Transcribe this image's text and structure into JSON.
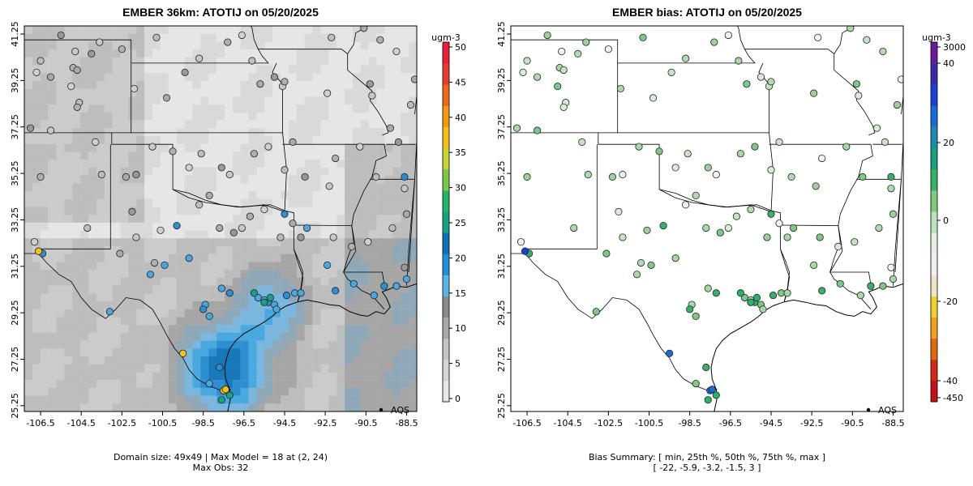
{
  "colors": {
    "conc_scale": [
      "#e8e8e8",
      "#d6d6d6",
      "#c4c4c4",
      "#a8a8a8",
      "#8a8a8a",
      "#5fb4e6",
      "#1e90d8",
      "#0e72b0",
      "#1aa085",
      "#27b36a",
      "#7cc84a",
      "#c9d43a",
      "#f2c21a",
      "#f29a14",
      "#ea6a1c",
      "#e63c2e",
      "#e8203c"
    ],
    "bias_scale": [
      "#6a1b9a",
      "#3a2aa8",
      "#1b3fd6",
      "#1b6ad6",
      "#1d8ab0",
      "#1c9c80",
      "#3bae69",
      "#7ec97e",
      "#bfe0bf",
      "#e6f0e6",
      "#f0f0f0",
      "#ece6c8",
      "#f0d030",
      "#f0a020",
      "#e06a10",
      "#d02a1a",
      "#c0101a"
    ]
  },
  "left_map": {
    "title": "EMBER 36km: ATOTIJ on 05/20/2025",
    "legend_label": "AQS",
    "colorbar_unit": "ugm-3",
    "colorbar_ticks": [
      "0",
      "5",
      "10",
      "15",
      "20",
      "25",
      "30",
      "35",
      "40",
      "45",
      "50"
    ],
    "caption_line1": "Domain size: 49x49 | Max Model = 18 at (2, 24)",
    "caption_line2": "Max Obs: 32"
  },
  "right_map": {
    "title": "EMBER bias: ATOTIJ on 05/20/2025",
    "legend_label": "AQS",
    "colorbar_unit": "ugm-3",
    "colorbar_ticks": [
      "3000",
      "40",
      "20",
      "0",
      "-20",
      "-40",
      "-450"
    ],
    "caption_line1": "Bias Summary: [ min, 25th %, 50th %, 75th %, max ]",
    "caption_line2": "[ -22,   -5.9,   -3.2,   -1.5,   3 ]"
  },
  "axes": {
    "x_ticks": [
      "-106.5",
      "-104.5",
      "-102.5",
      "-100.5",
      "-98.5",
      "-96.5",
      "-94.5",
      "-92.5",
      "-90.5",
      "-88.5"
    ],
    "y_ticks": [
      "41.25",
      "39.25",
      "37.25",
      "35.25",
      "33.25",
      "31.25",
      "29.25",
      "27.25",
      "25.25"
    ],
    "lon_range": [
      -107.3,
      -88.0
    ],
    "lat_range": [
      25.0,
      41.6
    ]
  },
  "stations": {
    "gray": [
      [
        -106.7,
        39.6
      ],
      [
        -106.5,
        40.1
      ],
      [
        -106.0,
        39.4
      ],
      [
        -105.5,
        41.2
      ],
      [
        -104.8,
        40.5
      ],
      [
        -104.9,
        39.8
      ],
      [
        -105.0,
        39.0
      ],
      [
        -104.6,
        38.3
      ],
      [
        -104.7,
        39.7
      ],
      [
        -104.0,
        40.4
      ],
      [
        -103.6,
        40.9
      ],
      [
        -102.5,
        40.6
      ],
      [
        -101.9,
        38.9
      ],
      [
        -100.8,
        41.1
      ],
      [
        -100.3,
        38.5
      ],
      [
        -99.4,
        39.6
      ],
      [
        -98.7,
        40.2
      ],
      [
        -97.3,
        40.9
      ],
      [
        -96.6,
        41.2
      ],
      [
        -96.1,
        40.1
      ],
      [
        -95.7,
        39.1
      ],
      [
        -95.0,
        39.4
      ],
      [
        -94.6,
        39.0
      ],
      [
        -94.5,
        39.2
      ],
      [
        -92.4,
        38.7
      ],
      [
        -92.2,
        41.1
      ],
      [
        -90.6,
        41.5
      ],
      [
        -90.3,
        39.1
      ],
      [
        -90.2,
        38.6
      ],
      [
        -89.8,
        41.0
      ],
      [
        -89.0,
        40.5
      ],
      [
        -88.3,
        38.2
      ],
      [
        -88.1,
        39.3
      ],
      [
        -107.0,
        37.2
      ],
      [
        -106.0,
        37.1
      ],
      [
        -104.7,
        38.1
      ],
      [
        -103.8,
        36.6
      ],
      [
        -103.5,
        35.2
      ],
      [
        -102.3,
        35.1
      ],
      [
        -101.8,
        35.2
      ],
      [
        -101.0,
        36.4
      ],
      [
        -100.0,
        36.2
      ],
      [
        -99.2,
        35.5
      ],
      [
        -98.6,
        36.1
      ],
      [
        -98.2,
        34.3
      ],
      [
        -97.6,
        35.5
      ],
      [
        -97.2,
        35.2
      ],
      [
        -96.0,
        36.1
      ],
      [
        -95.3,
        36.4
      ],
      [
        -94.5,
        35.4
      ],
      [
        -94.1,
        36.6
      ],
      [
        -93.5,
        35.1
      ],
      [
        -92.3,
        34.7
      ],
      [
        -92.0,
        35.9
      ],
      [
        -90.8,
        36.4
      ],
      [
        -90.0,
        35.1
      ],
      [
        -89.3,
        37.2
      ],
      [
        -88.9,
        36.6
      ],
      [
        -88.6,
        34.6
      ],
      [
        -106.5,
        35.1
      ],
      [
        -106.8,
        32.3
      ],
      [
        -104.2,
        32.9
      ],
      [
        -102.6,
        31.8
      ],
      [
        -102.0,
        33.6
      ],
      [
        -101.8,
        32.5
      ],
      [
        -100.9,
        31.4
      ],
      [
        -100.6,
        32.8
      ],
      [
        -98.7,
        33.9
      ],
      [
        -97.7,
        32.9
      ],
      [
        -97.0,
        32.7
      ],
      [
        -96.6,
        32.9
      ],
      [
        -96.2,
        33.4
      ],
      [
        -95.5,
        33.7
      ],
      [
        -94.7,
        32.5
      ],
      [
        -94.1,
        33.1
      ],
      [
        -93.7,
        32.5
      ],
      [
        -92.1,
        32.5
      ],
      [
        -91.2,
        32.1
      ],
      [
        -90.4,
        32.3
      ],
      [
        -89.2,
        32.9
      ],
      [
        -88.5,
        33.5
      ],
      [
        -88.6,
        31.2
      ]
    ],
    "blue": [
      [
        -106.4,
        31.8
      ],
      [
        -103.1,
        29.3
      ],
      [
        -98.4,
        29.6
      ],
      [
        -98.5,
        29.4
      ],
      [
        -98.2,
        29.1
      ],
      [
        -97.6,
        30.3
      ],
      [
        -97.2,
        30.1
      ],
      [
        -95.8,
        29.9
      ],
      [
        -95.5,
        29.8
      ],
      [
        -95.3,
        29.7
      ],
      [
        -95.0,
        29.6
      ],
      [
        -94.9,
        29.4
      ],
      [
        -94.4,
        30.0
      ],
      [
        -94.0,
        30.1
      ],
      [
        -93.7,
        30.1
      ],
      [
        -92.0,
        30.2
      ],
      [
        -91.1,
        30.5
      ],
      [
        -90.1,
        30.0
      ],
      [
        -89.6,
        30.4
      ],
      [
        -89.0,
        30.4
      ],
      [
        -88.5,
        30.7
      ],
      [
        -97.7,
        26.9
      ],
      [
        -98.2,
        26.2
      ],
      [
        -99.2,
        31.6
      ],
      [
        -99.8,
        33.0
      ],
      [
        -100.4,
        31.3
      ],
      [
        -101.1,
        30.9
      ],
      [
        -94.5,
        33.5
      ],
      [
        -93.4,
        32.9
      ],
      [
        -92.4,
        31.3
      ],
      [
        -88.6,
        35.1
      ]
    ],
    "yellow": [
      [
        -106.6,
        31.9
      ],
      [
        -99.5,
        27.5
      ],
      [
        -97.5,
        25.9
      ],
      [
        -97.4,
        25.95
      ]
    ],
    "green": [
      [
        -95.5,
        29.7
      ],
      [
        -95.2,
        29.9
      ],
      [
        -97.2,
        25.7
      ],
      [
        -97.6,
        25.5
      ],
      [
        -96.0,
        30.1
      ]
    ]
  }
}
